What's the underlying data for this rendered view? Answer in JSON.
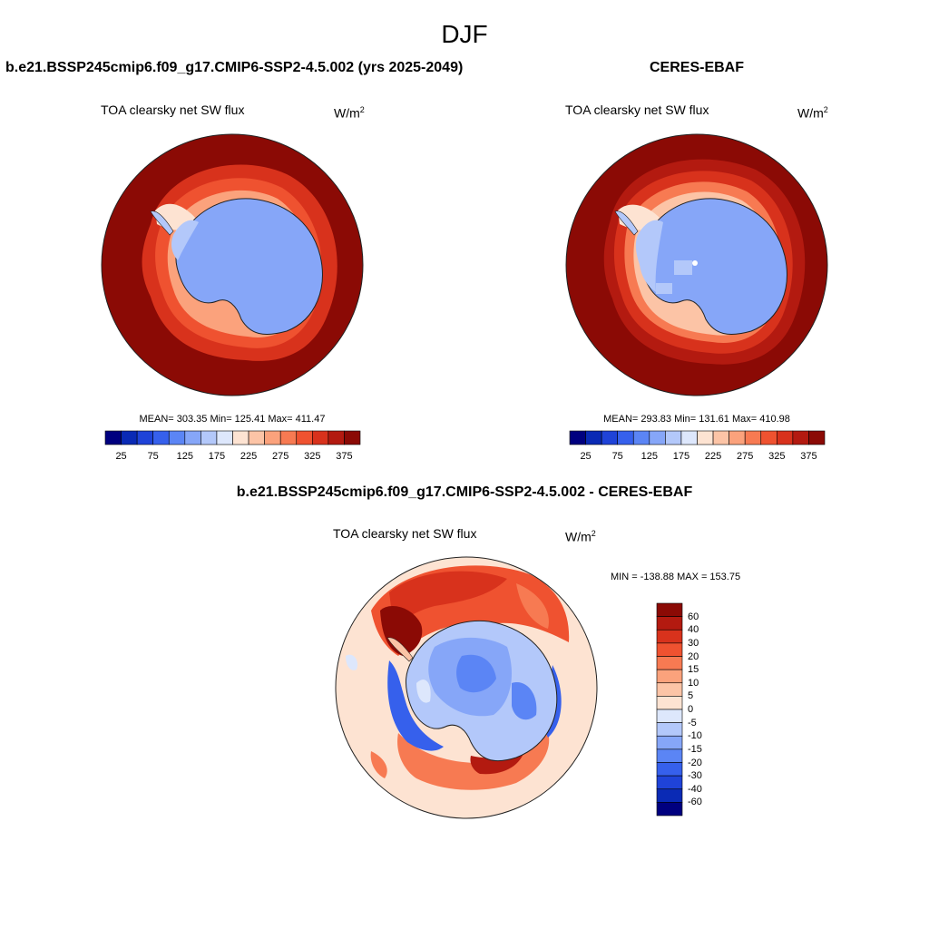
{
  "page": {
    "title": "DJF"
  },
  "panels": [
    {
      "title": "b.e21.BSSP245cmip6.f09_g17.CMIP6-SSP2-4.5.002 (yrs 2025-2049)",
      "variable": "TOA clearsky net SW flux",
      "units": "W/m",
      "units_sup": "2",
      "stats": {
        "mean": "303.35",
        "min": "125.41",
        "max": "411.47"
      },
      "stats_text": "MEAN= 303.35  Min= 125.41  Max= 411.47"
    },
    {
      "title": "CERES-EBAF",
      "variable": "TOA clearsky net SW flux",
      "units": "W/m",
      "units_sup": "2",
      "stats": {
        "mean": "293.83",
        "min": "131.61",
        "max": "410.98"
      },
      "stats_text": "MEAN= 293.83  Min= 131.61  Max= 410.98"
    }
  ],
  "diff_panel": {
    "title": "b.e21.BSSP245cmip6.f09_g17.CMIP6-SSP2-4.5.002 - CERES-EBAF",
    "variable": "TOA clearsky net SW flux",
    "units": "W/m",
    "units_sup": "2",
    "stats": {
      "min": "-138.88",
      "max": "153.75"
    },
    "stats_text": "MIN = -138.88 MAX = 153.75"
  },
  "colorbar_abs": {
    "ticks": [
      "25",
      "75",
      "125",
      "175",
      "225",
      "275",
      "325",
      "375"
    ],
    "colors": [
      "#00007f",
      "#0a2ab5",
      "#1f43d8",
      "#3660ec",
      "#5b85f5",
      "#86a6f8",
      "#b3c8fa",
      "#dde7fc",
      "#fde3d2",
      "#fcc4a6",
      "#fba27c",
      "#f77a52",
      "#ef5230",
      "#d8321c",
      "#b31a10",
      "#8b0a05"
    ]
  },
  "colorbar_diff": {
    "ticks": [
      "60",
      "40",
      "30",
      "20",
      "15",
      "10",
      "5",
      "0",
      "-5",
      "-10",
      "-15",
      "-20",
      "-30",
      "-40",
      "-60"
    ],
    "colors": [
      "#8b0a05",
      "#b31a10",
      "#d8321c",
      "#ef5230",
      "#f77a52",
      "#fba27c",
      "#fcc4a6",
      "#fde3d2",
      "#dde7fc",
      "#b3c8fa",
      "#86a6f8",
      "#5b85f5",
      "#3660ec",
      "#1f43d8",
      "#0a2ab5",
      "#00007f"
    ]
  },
  "map_colors": {
    "ocean_high": "#8b0a05",
    "ice_low": "#86a6f8",
    "diff_background": "#fde3d2"
  }
}
